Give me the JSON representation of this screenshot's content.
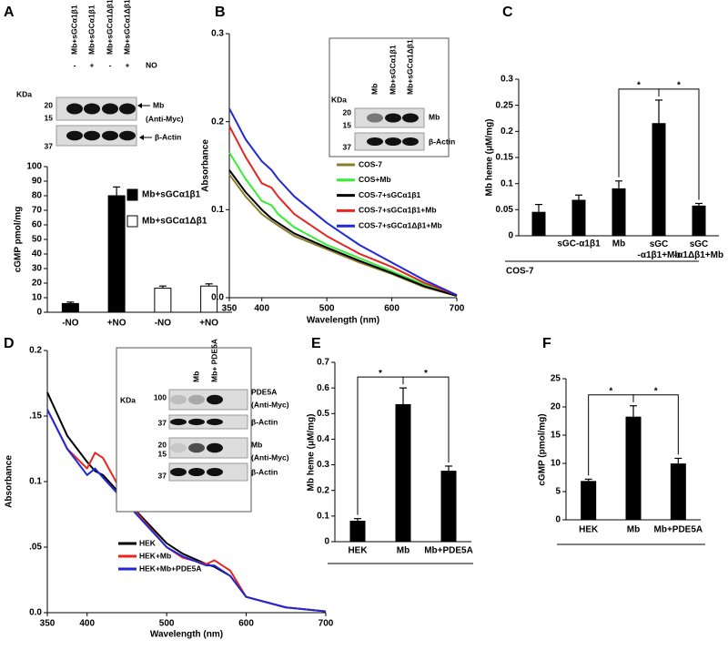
{
  "chart_data": [
    {
      "panel": "A",
      "type": "bar",
      "ylabel": "cGMP pmol/mg",
      "categories": [
        "-NO",
        "+NO",
        "-NO",
        "+NO"
      ],
      "series": [
        {
          "name": "Mb+sGCα1β1",
          "color": "#000000",
          "values": [
            6,
            80,
            null,
            null
          ],
          "errors": [
            1,
            6,
            null,
            null
          ]
        },
        {
          "name": "Mb+sGCα1Δβ1",
          "color": "#ffffff",
          "values": [
            null,
            null,
            16.5,
            18
          ],
          "errors": [
            null,
            null,
            1.5,
            1.5
          ]
        }
      ],
      "ylim": [
        0,
        100
      ],
      "yticks": [
        0,
        10,
        20,
        30,
        40,
        50,
        60,
        70,
        80,
        90,
        100
      ],
      "inset": {
        "lanes": [
          "Mb+sGCα1β1",
          "Mb+sGCα1β1",
          "Mb+sGCα1Δβ1",
          "Mb+sGCα1Δβ1"
        ],
        "treatment": "NO",
        "treatment_row": [
          "-",
          "+",
          "-",
          "+"
        ],
        "marker_unit": "KDa",
        "blots": [
          {
            "markers": [
              "20",
              "15"
            ],
            "labels": [
              "Mb",
              "(Anti-Myc)"
            ]
          },
          {
            "markers": [
              "37"
            ],
            "labels": [
              "β-Actin"
            ]
          }
        ]
      }
    },
    {
      "panel": "B",
      "type": "line",
      "ylabel": "Absorbance",
      "xlabel": "Wavelength (nm)",
      "x": [
        350,
        375,
        400,
        415,
        425,
        450,
        500,
        550,
        600,
        650,
        700
      ],
      "series": [
        {
          "name": "COS-7",
          "color": "#8b7d2a",
          "values": [
            0.14,
            0.115,
            0.095,
            0.087,
            0.082,
            0.07,
            0.055,
            0.04,
            0.027,
            0.012,
            0.002
          ]
        },
        {
          "name": "COS+Mb",
          "color": "#33ee33",
          "values": [
            0.165,
            0.135,
            0.11,
            0.105,
            0.095,
            0.08,
            0.06,
            0.045,
            0.03,
            0.015,
            0.002
          ]
        },
        {
          "name": "COS-7+sGCα1β1",
          "color": "#000000",
          "values": [
            0.145,
            0.12,
            0.1,
            0.09,
            0.085,
            0.073,
            0.057,
            0.042,
            0.028,
            0.013,
            0.002
          ]
        },
        {
          "name": "COS-7+sGCα1β1+Mb",
          "color": "#e8251f",
          "values": [
            0.195,
            0.16,
            0.13,
            0.125,
            0.115,
            0.095,
            0.07,
            0.05,
            0.035,
            0.017,
            0.003
          ]
        },
        {
          "name": "COS-7+sGCα1Δβ1+Mb",
          "color": "#1f2ad6",
          "values": [
            0.215,
            0.18,
            0.155,
            0.145,
            0.135,
            0.115,
            0.085,
            0.06,
            0.04,
            0.02,
            0.003
          ]
        }
      ],
      "xlim": [
        350,
        700
      ],
      "xticks": [
        350,
        400,
        500,
        600,
        700
      ],
      "ylim": [
        0,
        0.3
      ],
      "yticks": [
        {
          "value": 0,
          "label": "0.0"
        },
        0.1,
        0.2,
        0.3
      ],
      "inset": {
        "lanes": [
          "Mb",
          "Mb+sGCα1β1",
          "Mb+sGCα1Δβ1"
        ],
        "marker_unit": "KDa",
        "blots": [
          {
            "markers": [
              "20",
              "15"
            ],
            "labels": [
              "Mb"
            ]
          },
          {
            "markers": [
              "37"
            ],
            "labels": [
              "β-Actin"
            ]
          }
        ]
      }
    },
    {
      "panel": "C",
      "type": "bar",
      "ylabel": "Mb heme (μM/mg)",
      "categories": [
        null,
        "sGC-α1β1",
        "Mb",
        [
          "sGC",
          "-α1β1+Mb"
        ],
        [
          "sGC",
          "-α1Δβ1+Mb"
        ]
      ],
      "group_label": "COS-7",
      "series": [
        {
          "color": "#000000",
          "values": [
            0.045,
            0.068,
            0.09,
            0.215,
            0.057
          ],
          "errors": [
            0.015,
            0.01,
            0.015,
            0.045,
            0.005
          ]
        }
      ],
      "ylim": [
        0,
        0.3
      ],
      "yticks": [
        0,
        0.05,
        0.1,
        0.15,
        0.2,
        0.25,
        0.3
      ],
      "annotations": [
        {
          "label": "*",
          "between": [
            2,
            3
          ]
        },
        {
          "label": "*",
          "between": [
            3,
            4
          ]
        }
      ]
    },
    {
      "panel": "D",
      "type": "line",
      "ylabel": "Absorbance",
      "xlabel": "Wavelength (nm)",
      "x": [
        350,
        375,
        400,
        410,
        420,
        450,
        500,
        520,
        550,
        560,
        580,
        600,
        650,
        700
      ],
      "series": [
        {
          "name": "HEK",
          "color": "#000000",
          "values": [
            0.168,
            0.135,
            0.115,
            0.108,
            0.105,
            0.085,
            0.053,
            0.045,
            0.037,
            0.035,
            0.028,
            0.012,
            0.004,
            0.001
          ]
        },
        {
          "name": "HEK+Mb",
          "color": "#e8251f",
          "values": [
            0.155,
            0.125,
            0.11,
            0.122,
            0.118,
            0.085,
            0.05,
            0.042,
            0.037,
            0.04,
            0.032,
            0.012,
            0.004,
            0.001
          ]
        },
        {
          "name": "HEK+Mb+PDE5A",
          "color": "#1f2ad6",
          "values": [
            0.155,
            0.125,
            0.105,
            0.11,
            0.103,
            0.083,
            0.05,
            0.043,
            0.036,
            0.036,
            0.028,
            0.012,
            0.004,
            0.001
          ]
        }
      ],
      "xlim": [
        350,
        700
      ],
      "xticks": [
        350,
        400,
        500,
        600,
        700
      ],
      "ylim": [
        0,
        0.2
      ],
      "yticks": [
        {
          "value": 0,
          "label": "0.0"
        },
        {
          "value": 0.05,
          "label": ".05"
        },
        0.1,
        {
          "value": 0.15,
          "label": ".15"
        },
        0.2
      ],
      "inset": {
        "lanes": [
          null,
          "Mb",
          "Mb+ PDE5A"
        ],
        "marker_unit": "KDa",
        "blots": [
          {
            "markers": [
              "100"
            ],
            "labels": [
              "PDE5A",
              "(Anti-Myc)"
            ]
          },
          {
            "markers": [
              "37"
            ],
            "labels": [
              "β-Actin"
            ]
          },
          {
            "markers": [
              "20",
              "15"
            ],
            "labels": [
              "Mb",
              "(Anti-Myc)"
            ]
          },
          {
            "markers": [
              "37"
            ],
            "labels": [
              "β-Actin"
            ]
          }
        ]
      }
    },
    {
      "panel": "E",
      "type": "bar",
      "ylabel": "Mb heme (μM/mg)",
      "categories": [
        "HEK",
        "Mb",
        "Mb+PDE5A"
      ],
      "series": [
        {
          "color": "#000000",
          "values": [
            0.08,
            0.535,
            0.275
          ],
          "errors": [
            0.01,
            0.065,
            0.02
          ]
        }
      ],
      "ylim": [
        0,
        0.7
      ],
      "yticks": [
        0,
        0.1,
        0.2,
        0.3,
        0.4,
        0.5,
        0.6,
        0.7
      ],
      "annotations": [
        {
          "label": "*",
          "between": [
            0,
            1
          ]
        },
        {
          "label": "*",
          "between": [
            1,
            2
          ]
        }
      ]
    },
    {
      "panel": "F",
      "type": "bar",
      "ylabel": "cGMP (pmol/mg)",
      "categories": [
        "HEK",
        "Mb",
        "Mb+PDE5A"
      ],
      "series": [
        {
          "color": "#000000",
          "values": [
            6.8,
            18.2,
            9.9
          ],
          "errors": [
            0.4,
            2,
            1
          ]
        }
      ],
      "ylim": [
        0,
        25
      ],
      "yticks": [
        0,
        5,
        10,
        15,
        20,
        25
      ],
      "annotations": [
        {
          "label": "*",
          "between": [
            0,
            1
          ]
        },
        {
          "label": "*",
          "between": [
            1,
            2
          ]
        }
      ]
    }
  ]
}
